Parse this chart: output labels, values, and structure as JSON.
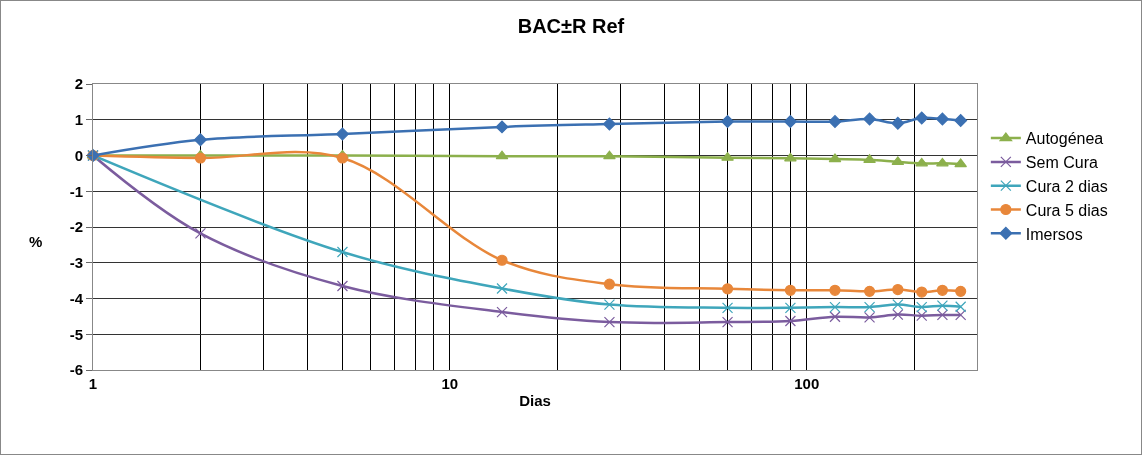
{
  "chart_data": {
    "type": "line",
    "title": "BAC±R Ref",
    "xlabel": "Dias",
    "ylabel": "%",
    "x": [
      1,
      2,
      5,
      14,
      28,
      60,
      90,
      120,
      150,
      180,
      210,
      240,
      270
    ],
    "series": [
      {
        "name": "Autogénea",
        "color": "#8cb04c",
        "marker": "triangle",
        "values": [
          0,
          0,
          0,
          -0.02,
          -0.02,
          -0.06,
          -0.08,
          -0.1,
          -0.12,
          -0.18,
          -0.22,
          -0.22,
          -0.24
        ]
      },
      {
        "name": "Sem Cura",
        "color": "#7b5c9e",
        "marker": "cross",
        "values": [
          0,
          -2.18,
          -3.65,
          -4.38,
          -4.66,
          -4.66,
          -4.63,
          -4.51,
          -4.53,
          -4.45,
          -4.48,
          -4.46,
          -4.46
        ]
      },
      {
        "name": "Cura 2 dias",
        "color": "#3fa6bb",
        "marker": "cross",
        "values": [
          0,
          null,
          -2.7,
          -3.72,
          -4.17,
          -4.26,
          -4.26,
          -4.24,
          -4.24,
          -4.17,
          -4.24,
          -4.2,
          -4.23
        ]
      },
      {
        "name": "Cura 5 dias",
        "color": "#e8873a",
        "marker": "circle",
        "values": [
          0,
          -0.07,
          -0.07,
          -2.93,
          -3.6,
          -3.73,
          -3.77,
          -3.77,
          -3.8,
          -3.75,
          -3.82,
          -3.77,
          -3.8
        ]
      },
      {
        "name": "Imersos",
        "color": "#3b70b2",
        "marker": "diamond",
        "values": [
          0,
          0.44,
          0.6,
          0.8,
          0.88,
          0.95,
          0.95,
          0.95,
          1.02,
          0.9,
          1.05,
          1.02,
          0.98
        ]
      }
    ],
    "log": "x",
    "xlim": [
      1,
      300
    ],
    "xticks": [
      1,
      {
        "value": 2,
        "label": null
      },
      {
        "value": 3,
        "label": null
      },
      {
        "value": 4,
        "label": null
      },
      {
        "value": 5,
        "label": null
      },
      {
        "value": 6,
        "label": null
      },
      {
        "value": 7,
        "label": null
      },
      {
        "value": 8,
        "label": null
      },
      {
        "value": 9,
        "label": null
      },
      10,
      {
        "value": 20,
        "label": null
      },
      {
        "value": 30,
        "label": null
      },
      {
        "value": 40,
        "label": null
      },
      {
        "value": 50,
        "label": null
      },
      {
        "value": 60,
        "label": null
      },
      {
        "value": 70,
        "label": null
      },
      {
        "value": 80,
        "label": null
      },
      {
        "value": 90,
        "label": null
      },
      100,
      {
        "value": 200,
        "label": null
      },
      {
        "value": 300,
        "label": null
      }
    ],
    "ylim": [
      -6,
      2
    ],
    "yticks": [
      -6,
      -5,
      -4,
      -3,
      -2,
      -1,
      0,
      1,
      2
    ],
    "grid": true,
    "legend": "right"
  }
}
